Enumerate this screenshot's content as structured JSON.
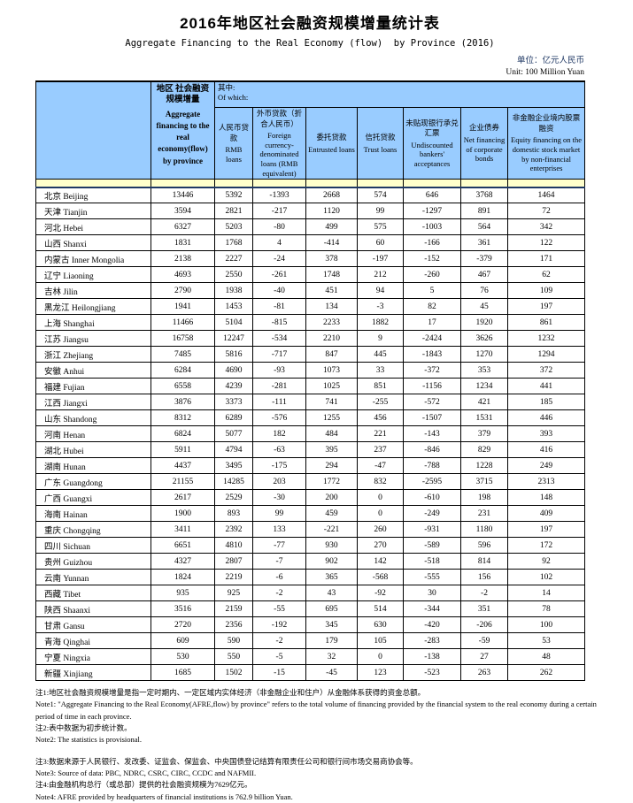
{
  "page": {
    "title": "2016年地区社会融资规模增量统计表",
    "subtitle": "Aggregate Financing to the Real Economy (flow)  by Province (2016)",
    "unit_cn": "单位：亿元人民币",
    "unit_en": "Unit: 100 Million Yuan"
  },
  "colors": {
    "header_bg": "#99CCFF",
    "spacer_bg": "#FFFFCC",
    "divider": "#1F3864",
    "unit_cn": "#1F3864"
  },
  "table": {
    "header": {
      "afre": {
        "cn": "地区 社会融资规模增量",
        "en": "Aggregate financing to the real economy(flow) by province"
      },
      "of_which": {
        "cn": "其中:",
        "en": "Of which:"
      },
      "columns": [
        {
          "cn": "人民币贷款",
          "en": "RMB loans"
        },
        {
          "cn": "外币贷款（折合人民币）",
          "en": "Foreign currency-denominated loans (RMB equivalent)"
        },
        {
          "cn": "委托贷款",
          "en": "Entrusted loans"
        },
        {
          "cn": "信托贷款",
          "en": "Trust loans"
        },
        {
          "cn": "未贴现银行承兑汇票",
          "en": "Undiscounted bankers' acceptances"
        },
        {
          "cn": "企业债券",
          "en": "Net financing of corporate bonds"
        },
        {
          "cn": "非金融企业境内股票融资",
          "en": "Equity financing on the domestic stock market by non-financial enterprises"
        }
      ]
    },
    "rows": [
      {
        "cn": "北京",
        "en": "Beijing",
        "values": [
          13446,
          5392,
          -1393,
          2668,
          574,
          646,
          3768,
          1464
        ]
      },
      {
        "cn": "天津",
        "en": "Tianjin",
        "values": [
          3594,
          2821,
          -217,
          1120,
          99,
          -1297,
          891,
          72
        ]
      },
      {
        "cn": "河北",
        "en": "Hebei",
        "values": [
          6327,
          5203,
          -80,
          499,
          575,
          -1003,
          564,
          342
        ]
      },
      {
        "cn": "山西",
        "en": "Shanxi",
        "values": [
          1831,
          1768,
          4,
          -414,
          60,
          -166,
          361,
          122
        ]
      },
      {
        "cn": "内蒙古",
        "en": "Inner Mongolia",
        "values": [
          2138,
          2227,
          -24,
          378,
          -197,
          -152,
          -379,
          171
        ]
      },
      {
        "cn": "辽宁",
        "en": "Liaoning",
        "values": [
          4693,
          2550,
          -261,
          1748,
          212,
          -260,
          467,
          62
        ]
      },
      {
        "cn": "吉林",
        "en": "Jilin",
        "values": [
          2790,
          1938,
          -40,
          451,
          94,
          5,
          76,
          109
        ]
      },
      {
        "cn": "黑龙江",
        "en": "Heilongjiang",
        "values": [
          1941,
          1453,
          -81,
          134,
          -3,
          82,
          45,
          197
        ]
      },
      {
        "cn": "上海",
        "en": "Shanghai",
        "values": [
          11466,
          5104,
          -815,
          2233,
          1882,
          17,
          1920,
          861
        ]
      },
      {
        "cn": "江苏",
        "en": "Jiangsu",
        "values": [
          16758,
          12247,
          -534,
          2210,
          9,
          -2424,
          3626,
          1232
        ]
      },
      {
        "cn": "浙江",
        "en": "Zhejiang",
        "values": [
          7485,
          5816,
          -717,
          847,
          445,
          -1843,
          1270,
          1294
        ]
      },
      {
        "cn": "安徽",
        "en": "Anhui",
        "values": [
          6284,
          4690,
          -93,
          1073,
          33,
          -372,
          353,
          372
        ]
      },
      {
        "cn": "福建",
        "en": "Fujian",
        "values": [
          6558,
          4239,
          -281,
          1025,
          851,
          -1156,
          1234,
          441
        ]
      },
      {
        "cn": "江西",
        "en": "Jiangxi",
        "values": [
          3876,
          3373,
          -111,
          741,
          -255,
          -572,
          421,
          185
        ]
      },
      {
        "cn": "山东",
        "en": "Shandong",
        "values": [
          8312,
          6289,
          -576,
          1255,
          456,
          -1507,
          1531,
          446
        ]
      },
      {
        "cn": "河南",
        "en": "Henan",
        "values": [
          6824,
          5077,
          182,
          484,
          221,
          -143,
          379,
          393
        ]
      },
      {
        "cn": "湖北",
        "en": "Hubei",
        "values": [
          5911,
          4794,
          -63,
          395,
          237,
          -846,
          829,
          416
        ]
      },
      {
        "cn": "湖南",
        "en": "Hunan",
        "values": [
          4437,
          3495,
          -175,
          294,
          -47,
          -788,
          1228,
          249
        ]
      },
      {
        "cn": "广东",
        "en": "Guangdong",
        "values": [
          21155,
          14285,
          203,
          1772,
          832,
          -2595,
          3715,
          2313
        ]
      },
      {
        "cn": "广西",
        "en": "Guangxi",
        "values": [
          2617,
          2529,
          -30,
          200,
          0,
          -610,
          198,
          148
        ]
      },
      {
        "cn": "海南",
        "en": "Hainan",
        "values": [
          1900,
          893,
          99,
          459,
          0,
          -249,
          231,
          409
        ]
      },
      {
        "cn": "重庆",
        "en": "Chongqing",
        "values": [
          3411,
          2392,
          133,
          -221,
          260,
          -931,
          1180,
          197
        ]
      },
      {
        "cn": "四川",
        "en": "Sichuan",
        "values": [
          6651,
          4810,
          -77,
          930,
          270,
          -589,
          596,
          172
        ]
      },
      {
        "cn": "贵州",
        "en": "Guizhou",
        "values": [
          4327,
          2807,
          -7,
          902,
          142,
          -518,
          814,
          92
        ]
      },
      {
        "cn": "云南",
        "en": "Yunnan",
        "values": [
          1824,
          2219,
          -6,
          365,
          -568,
          -555,
          156,
          102
        ]
      },
      {
        "cn": "西藏",
        "en": "Tibet",
        "values": [
          935,
          925,
          -2,
          43,
          -92,
          30,
          -2,
          14
        ]
      },
      {
        "cn": "陕西",
        "en": "Shaanxi",
        "values": [
          3516,
          2159,
          -55,
          695,
          514,
          -344,
          351,
          78
        ]
      },
      {
        "cn": "甘肃",
        "en": "Gansu",
        "values": [
          2720,
          2356,
          -192,
          345,
          630,
          -420,
          -206,
          100
        ]
      },
      {
        "cn": "青海",
        "en": "Qinghai",
        "values": [
          609,
          590,
          -2,
          179,
          105,
          -283,
          -59,
          53
        ]
      },
      {
        "cn": "宁夏",
        "en": "Ningxia",
        "values": [
          530,
          550,
          -5,
          32,
          0,
          -138,
          27,
          48
        ]
      },
      {
        "cn": "新疆",
        "en": "Xinjiang",
        "values": [
          1685,
          1502,
          -15,
          -45,
          123,
          -523,
          263,
          262
        ]
      }
    ]
  },
  "notes": [
    {
      "text": "注1:地区社会融资规模增量是指一定时期内、一定区域内实体经济（非金融企业和住户）从金融体系获得的资金总额。",
      "gap": false
    },
    {
      "text": "Note1: \"Aggregate Financing to the Real Economy(AFRE,flow) by province\" refers to the total volume of financing provided by the financial system to the real economy during a certain period of time in each province.",
      "gap": false
    },
    {
      "text": "注2:表中数据为初步统计数。",
      "gap": false
    },
    {
      "text": "Note2: The statistics is provisional.",
      "gap": false
    },
    {
      "text": "注3:数据来源于人民银行、发改委、证监会、保监会、中央国债登记结算有限责任公司和银行间市场交易商协会等。",
      "gap": true
    },
    {
      "text": "Note3: Source of data: PBC, NDRC, CSRC, CIRC, CCDC and NAFMII.",
      "gap": false
    },
    {
      "text": "注4:由金融机构总行（或总部）提供的社会融资规模为7629亿元。",
      "gap": false
    },
    {
      "text": "Note4: AFRE provided by headquarters of financial institutions is 762.9 billion Yuan.",
      "gap": false
    }
  ]
}
